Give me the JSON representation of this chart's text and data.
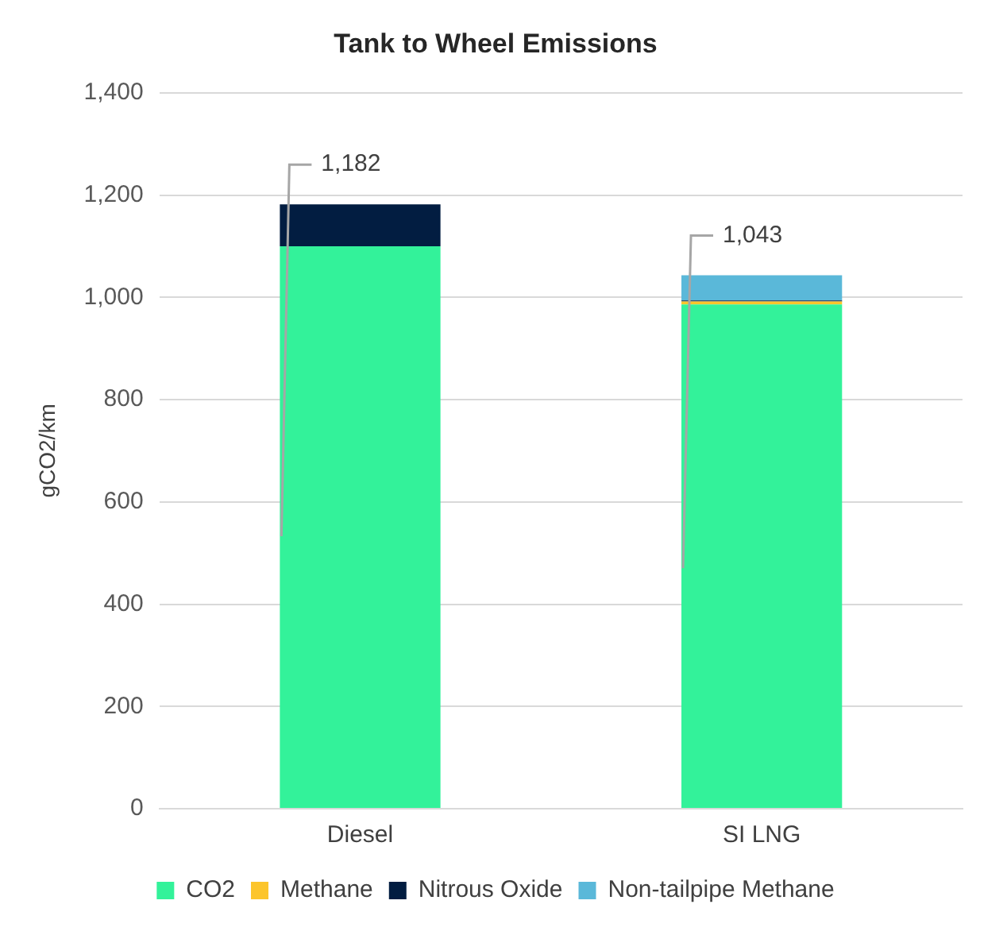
{
  "chart_data": {
    "type": "bar",
    "title": "Tank to Wheel Emissions",
    "ylabel": "gCO2/km",
    "categories": [
      "Diesel",
      "SI LNG"
    ],
    "stacked": true,
    "series": [
      {
        "name": "CO2",
        "color": "#33f29a",
        "values": [
          1100,
          986
        ]
      },
      {
        "name": "Methane",
        "color": "#fcc52b",
        "values": [
          0,
          6
        ]
      },
      {
        "name": "Nitrous Oxide",
        "color": "#021d41",
        "values": [
          82,
          2
        ]
      },
      {
        "name": "Non-tailpipe Methane",
        "color": "#5ab8d9",
        "values": [
          0,
          49
        ]
      }
    ],
    "totals": [
      "1,182",
      "1,043"
    ],
    "ylim": [
      0,
      1400
    ],
    "yticks": [
      {
        "value": 0,
        "label": "0"
      },
      {
        "value": 200,
        "label": "200"
      },
      {
        "value": 400,
        "label": "400"
      },
      {
        "value": 600,
        "label": "600"
      },
      {
        "value": 800,
        "label": "800"
      },
      {
        "value": 1000,
        "label": "1,000"
      },
      {
        "value": 1200,
        "label": "1,200"
      },
      {
        "value": 1400,
        "label": "1,400"
      }
    ],
    "grid": "y",
    "legend": "bottom"
  }
}
